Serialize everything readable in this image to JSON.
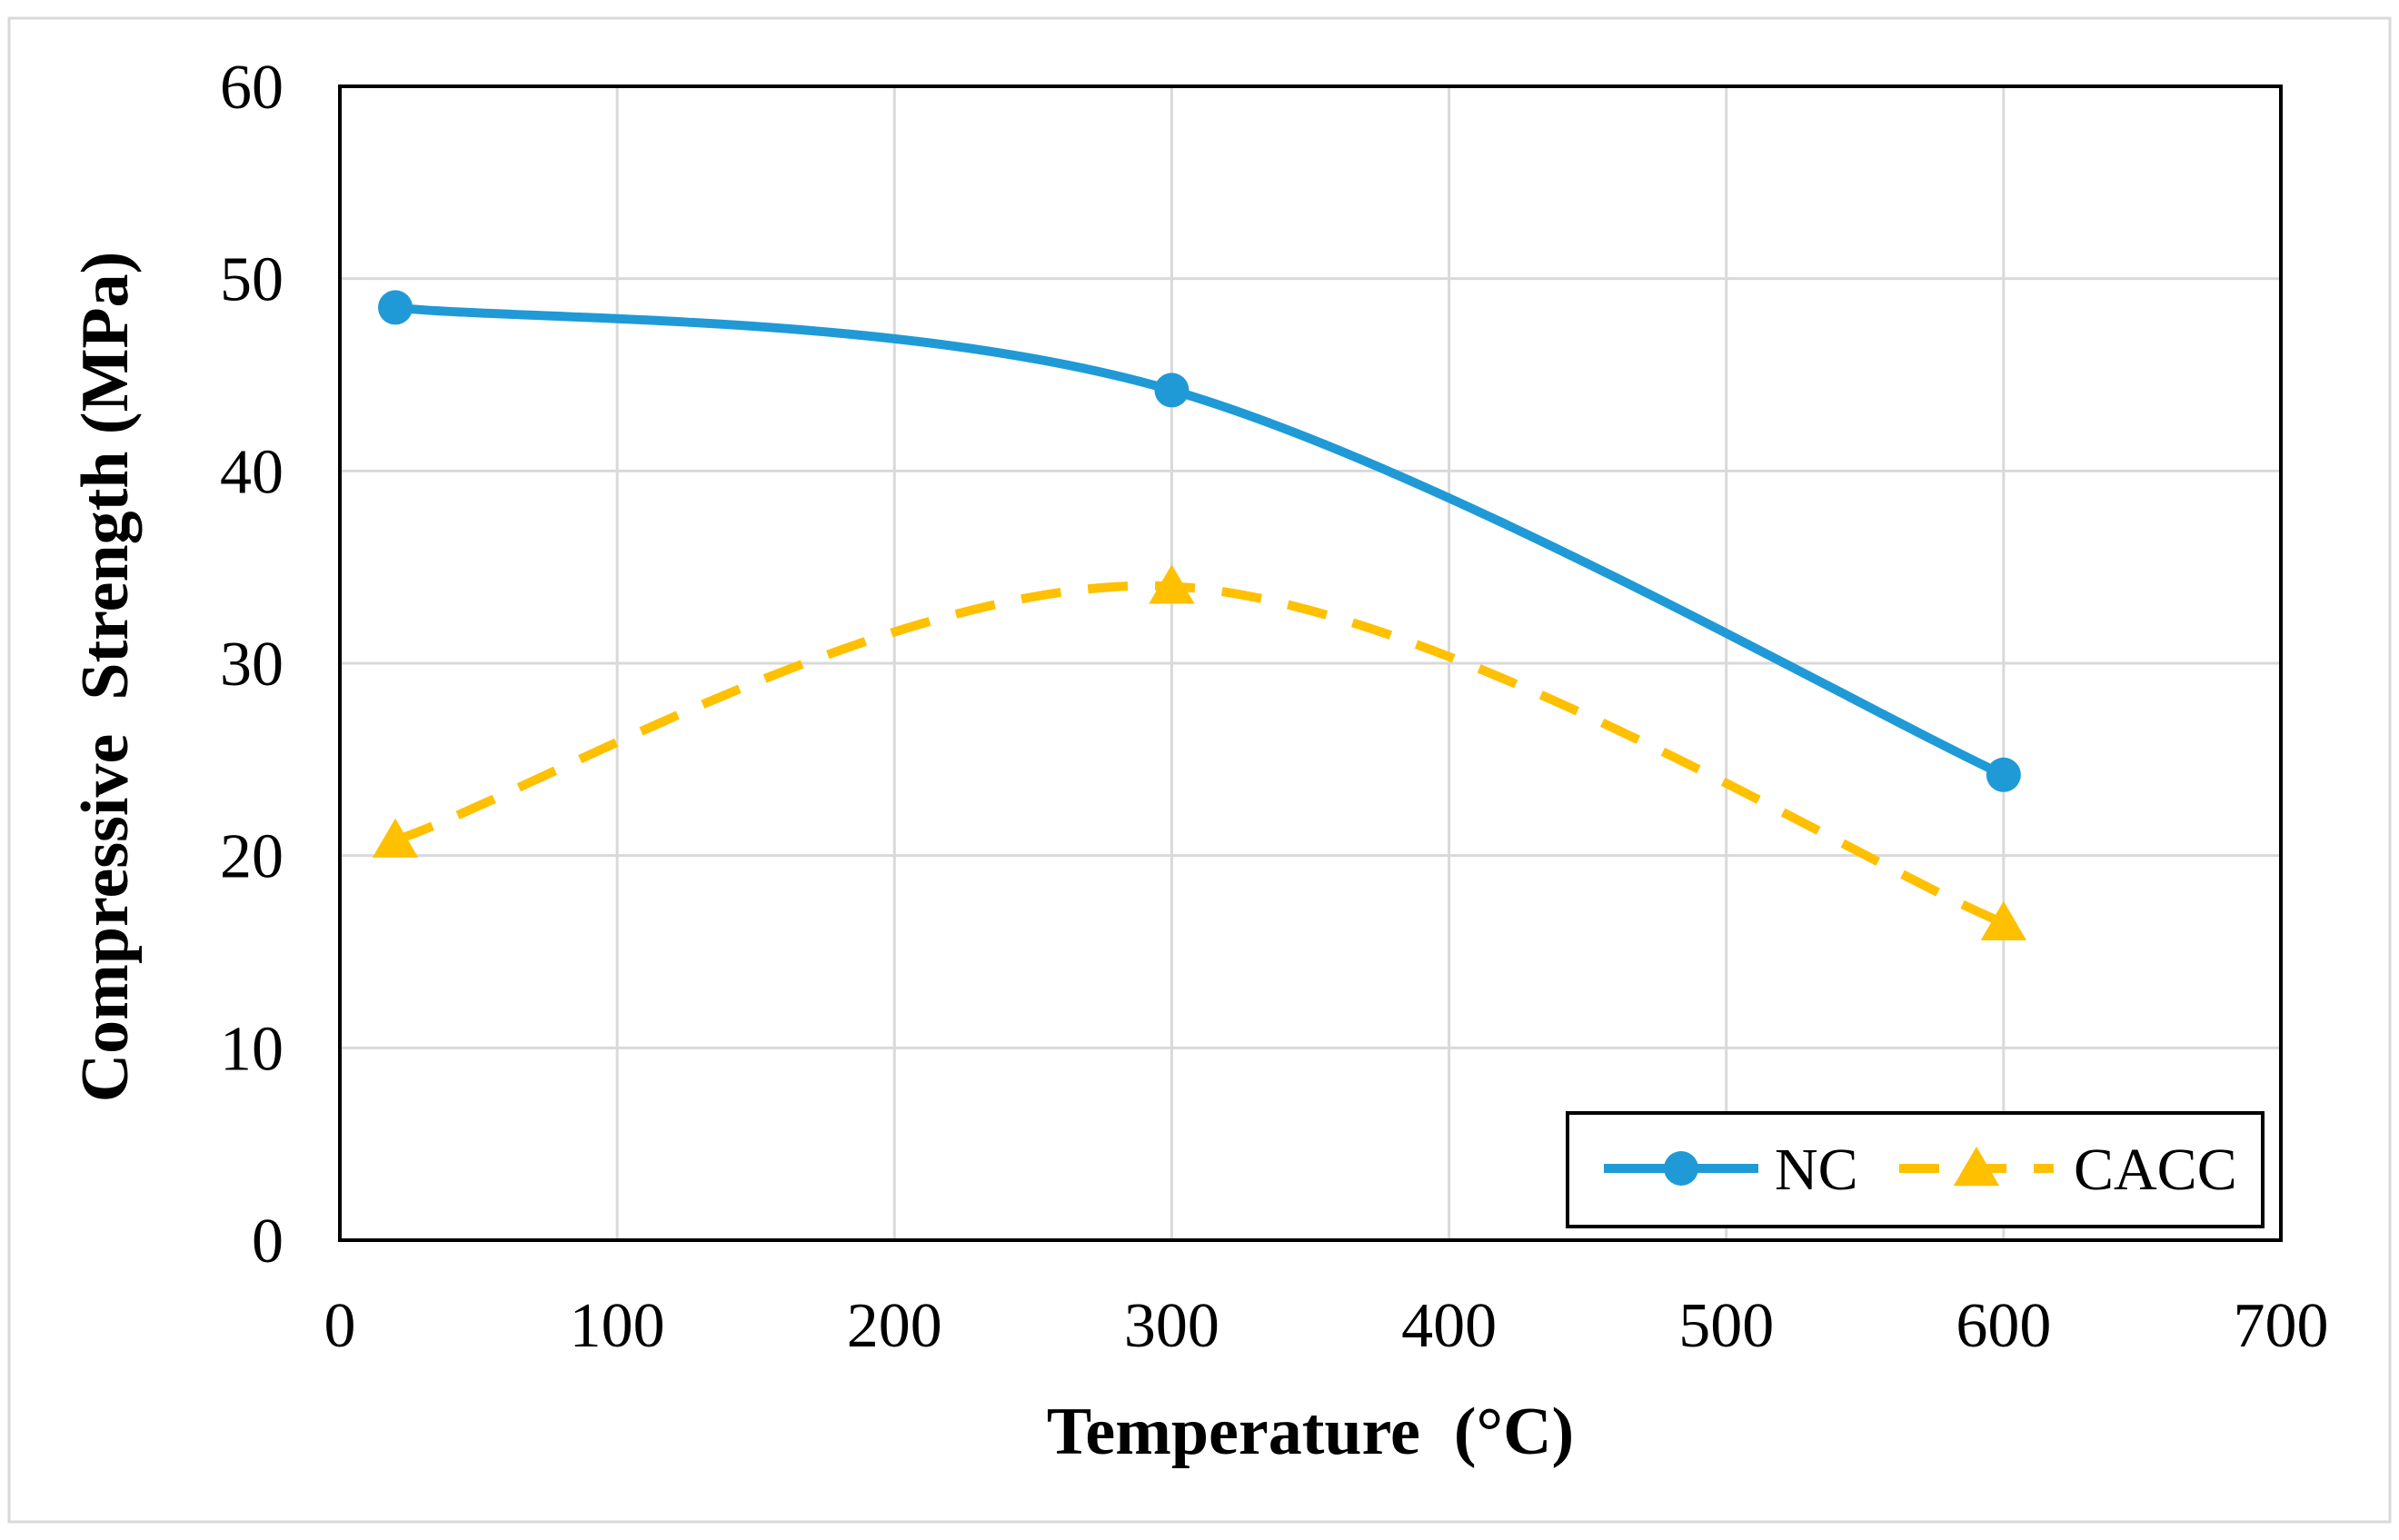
{
  "chart_data": {
    "type": "line",
    "title": "",
    "xlabel": "Temperature  (°C)",
    "ylabel": "Compressive  Strength (MPa)",
    "xlim": [
      0,
      700
    ],
    "ylim": [
      0,
      60
    ],
    "x_ticks": [
      0,
      100,
      200,
      300,
      400,
      500,
      600,
      700
    ],
    "y_ticks": [
      0,
      10,
      20,
      30,
      40,
      50,
      60
    ],
    "grid": true,
    "smooth": true,
    "legend_position": "bottom-right",
    "series": [
      {
        "name": "NC",
        "x": [
          20,
          300,
          600
        ],
        "values": [
          48.5,
          44.2,
          24.2
        ],
        "color": "#1f9ad6",
        "marker": "circle",
        "line_style": "solid"
      },
      {
        "name": "CACC",
        "x": [
          20,
          300,
          600
        ],
        "values": [
          20.8,
          34.0,
          16.5
        ],
        "color": "#ffc000",
        "marker": "triangle",
        "line_style": "dashed"
      }
    ]
  }
}
